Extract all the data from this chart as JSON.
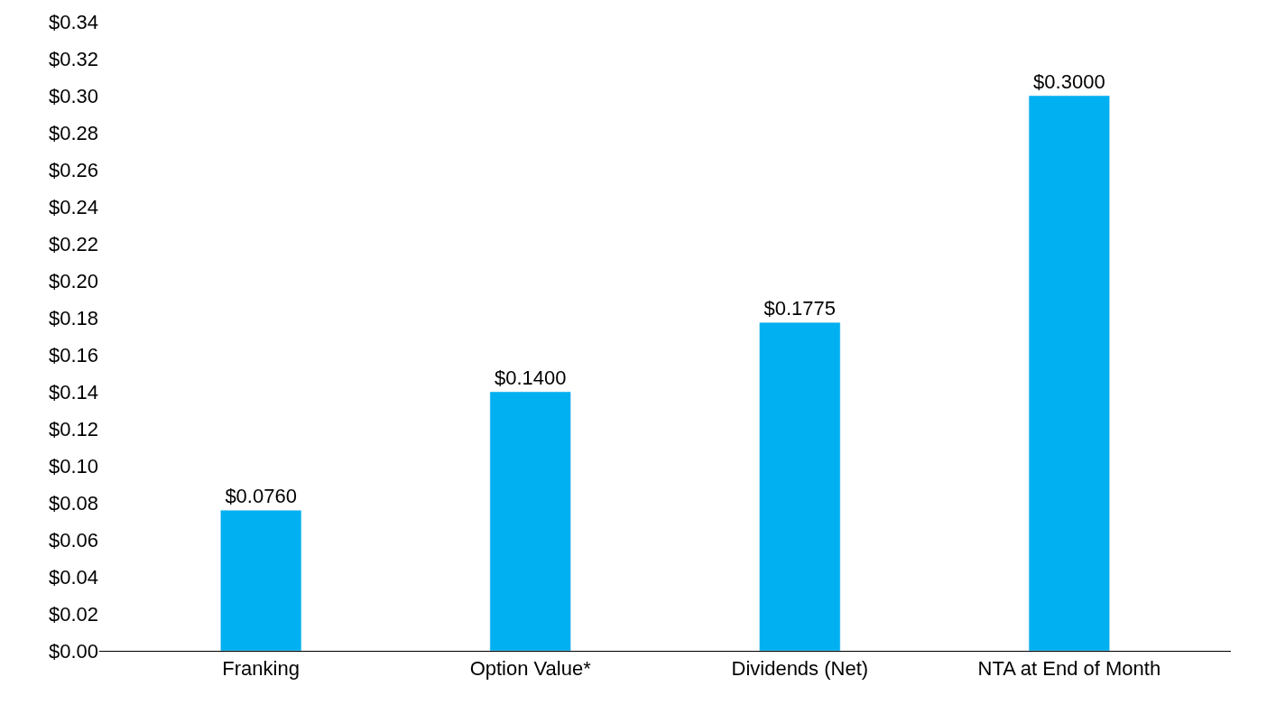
{
  "chart_data": {
    "type": "bar",
    "categories": [
      "Franking",
      "Option Value*",
      "Dividends (Net)",
      "NTA at End of Month"
    ],
    "values": [
      0.076,
      0.14,
      0.1775,
      0.3
    ],
    "value_labels": [
      "$0.0760",
      "$0.1400",
      "$0.1775",
      "$0.3000"
    ],
    "color": "#00b0f0",
    "ylim": [
      0,
      0.34
    ],
    "yticks": [
      {
        "value": 0,
        "label": "$0.00"
      },
      {
        "value": 0.02,
        "label": "$0.02"
      },
      {
        "value": 0.04,
        "label": "$0.04"
      },
      {
        "value": 0.06,
        "label": "$0.06"
      },
      {
        "value": 0.08,
        "label": "$0.08"
      },
      {
        "value": 0.1,
        "label": "$0.10"
      },
      {
        "value": 0.12,
        "label": "$0.12"
      },
      {
        "value": 0.14,
        "label": "$0.14"
      },
      {
        "value": 0.16,
        "label": "$0.16"
      },
      {
        "value": 0.18,
        "label": "$0.18"
      },
      {
        "value": 0.2,
        "label": "$0.20"
      },
      {
        "value": 0.22,
        "label": "$0.22"
      },
      {
        "value": 0.24,
        "label": "$0.24"
      },
      {
        "value": 0.26,
        "label": "$0.26"
      },
      {
        "value": 0.28,
        "label": "$0.28"
      },
      {
        "value": 0.3,
        "label": "$0.30"
      },
      {
        "value": 0.32,
        "label": "$0.32"
      },
      {
        "value": 0.34,
        "label": "$0.34"
      }
    ],
    "orientation": "vertical"
  }
}
